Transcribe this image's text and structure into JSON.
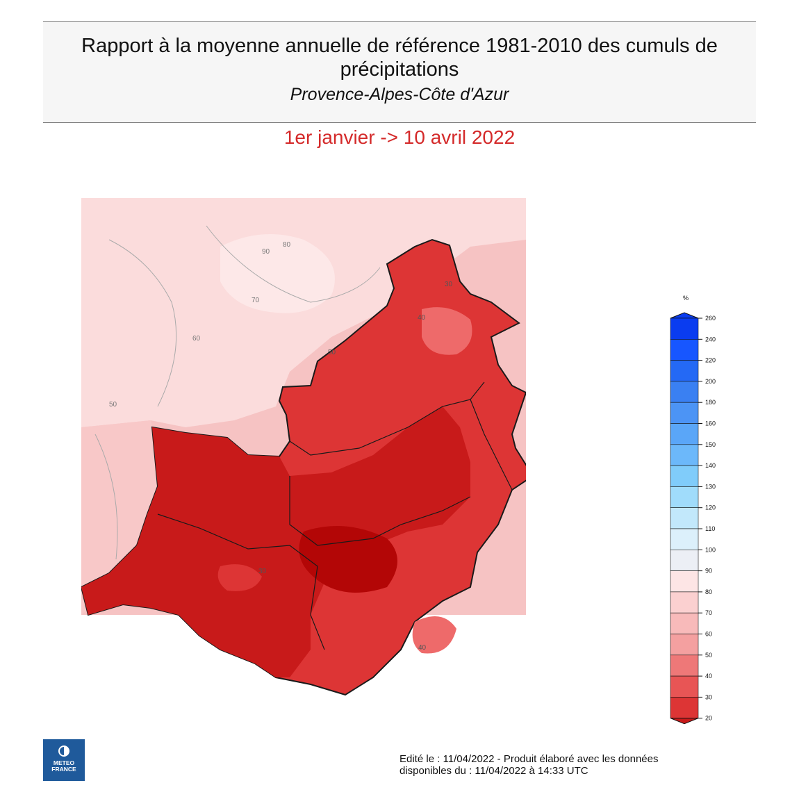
{
  "header": {
    "title": "Rapport à la moyenne annuelle de référence 1981-2010 des cumuls de précipitations",
    "subtitle": "Provence-Alpes-Côte d'Azur"
  },
  "period": "1er janvier -> 10 avril 2022",
  "legend": {
    "unit": "%",
    "values": [
      "260",
      "240",
      "220",
      "200",
      "180",
      "160",
      "150",
      "140",
      "130",
      "120",
      "110",
      "100",
      "90",
      "80",
      "70",
      "60",
      "50",
      "40",
      "30",
      "20"
    ],
    "colors": [
      "#0a3cf0",
      "#1756ff",
      "#2469f5",
      "#3a80f2",
      "#4c94f5",
      "#5aa6f8",
      "#6cb8fa",
      "#80ccfa",
      "#a0dcfb",
      "#c2e8fb",
      "#dcf0fb",
      "#eceff5",
      "#fde5e5",
      "#fbd0d0",
      "#f8baba",
      "#f4a0a0",
      "#ee7878",
      "#e85555",
      "#dd3535",
      "#c81a1a"
    ]
  },
  "map": {
    "contour_labels": [
      "30",
      "40",
      "50",
      "60",
      "70",
      "80",
      "90",
      "30",
      "40",
      "50"
    ]
  },
  "footer": {
    "line1": "Edité le : 11/04/2022 - Produit élaboré avec les données",
    "line2": "disponibles du : 11/04/2022 à 14:33 UTC"
  },
  "logo": {
    "text": "METEO\nFRANCE",
    "icon": "meteo-france-logo-icon"
  }
}
